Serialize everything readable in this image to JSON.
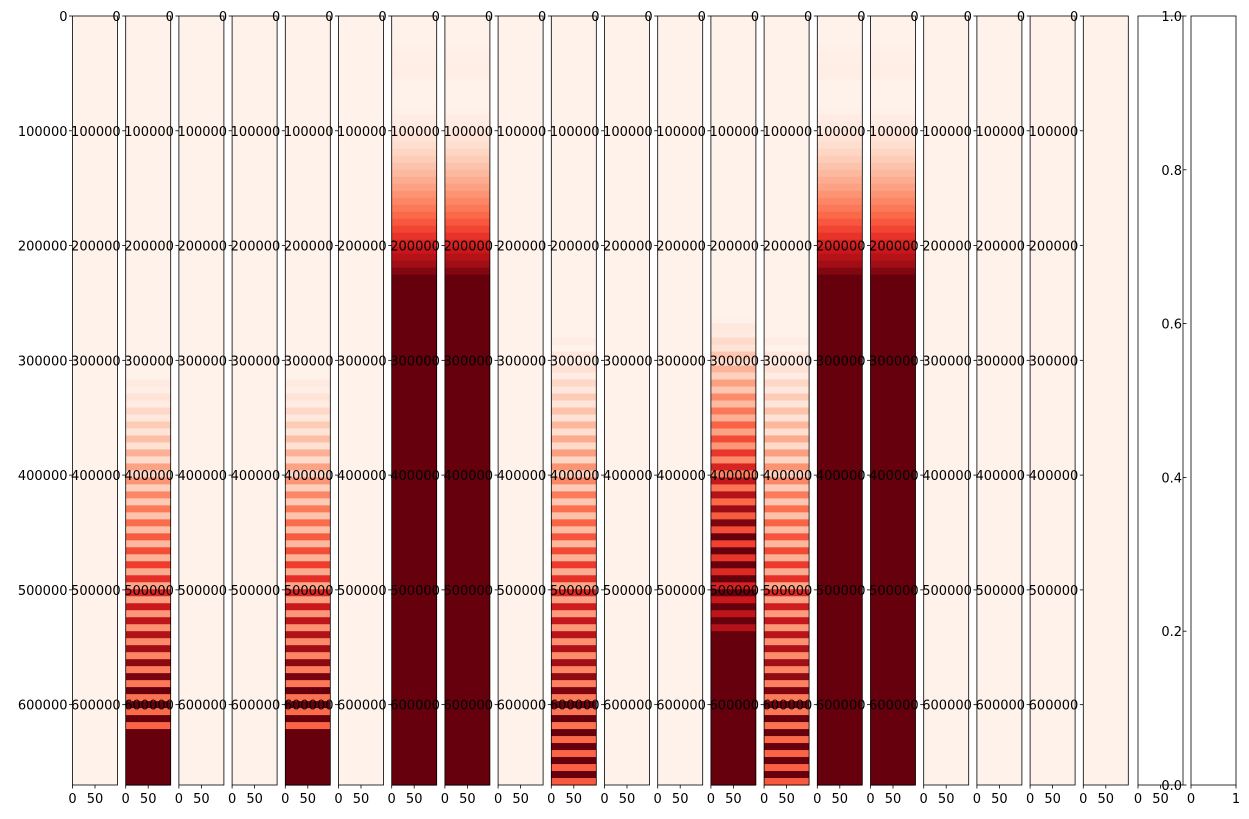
{
  "chart_data": {
    "type": "heatmap",
    "colormap": "Reds",
    "panel_count": 20,
    "y_ticks": [
      0,
      100000,
      200000,
      300000,
      400000,
      500000,
      600000
    ],
    "x_ticks": [
      0,
      50
    ],
    "ylim": [
      670000,
      0
    ],
    "xlim": [
      0,
      100
    ],
    "panels": [
      {
        "profile": "flat"
      },
      {
        "profile": "bottom-stripes"
      },
      {
        "profile": "flat"
      },
      {
        "profile": "flat"
      },
      {
        "profile": "bottom-stripes"
      },
      {
        "profile": "flat"
      },
      {
        "profile": "saturated"
      },
      {
        "profile": "saturated"
      },
      {
        "profile": "flat"
      },
      {
        "profile": "mid-stripes"
      },
      {
        "profile": "flat"
      },
      {
        "profile": "flat"
      },
      {
        "profile": "dense-stripes"
      },
      {
        "profile": "mid-stripes"
      },
      {
        "profile": "saturated"
      },
      {
        "profile": "saturated"
      },
      {
        "profile": "flat"
      },
      {
        "profile": "flat"
      },
      {
        "profile": "flat"
      },
      {
        "profile": "flat"
      }
    ],
    "colorbar": {
      "ticks": [
        "0.0",
        "0.2",
        "0.4",
        "0.6",
        "0.8",
        "1.0"
      ],
      "range": [
        0,
        1
      ]
    },
    "empty_axis": {
      "x_ticks": [
        "0",
        "1"
      ]
    }
  }
}
